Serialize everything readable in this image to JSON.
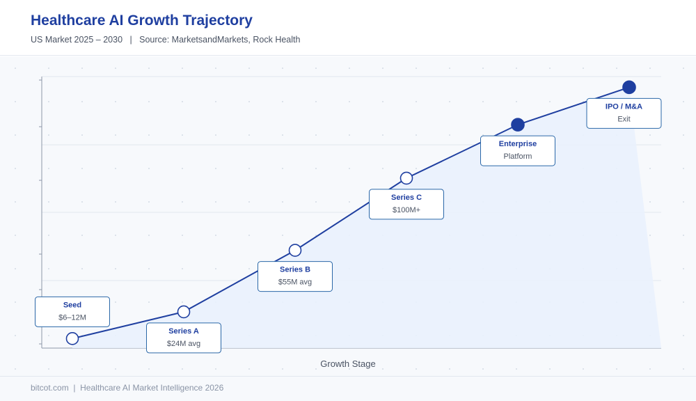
{
  "header": {
    "title": "Healthcare AI Growth Trajectory",
    "subtitle": "US Market 2025 – 2030   |   Source: MarketsandMarkets, Rock Health"
  },
  "footer": {
    "text": "bitcot.com  |  Healthcare AI Market Intelligence 2026"
  },
  "colors": {
    "line": "#1f3fa0",
    "accent_fill": "#1f3fa0",
    "hollow_fill": "#ffffff",
    "area_fill": "#e9f1fd",
    "label_border": "#2a67a8"
  },
  "chart_data": {
    "type": "line",
    "title": "",
    "xlabel": "Growth Stage",
    "ylabel": "",
    "ylim": [
      0,
      100
    ],
    "grid": true,
    "categories": [
      "Seed",
      "Series A",
      "Series B",
      "Series C",
      "Enterprise",
      "IPO / M&A"
    ],
    "stage_values": [
      "$6–12M",
      "$24M avg",
      "$55M avg",
      "$100M+",
      "Platform",
      "Exit"
    ],
    "values": [
      2,
      12,
      35,
      62,
      82,
      96
    ],
    "highlighted": [
      false,
      false,
      false,
      false,
      true,
      true
    ]
  }
}
